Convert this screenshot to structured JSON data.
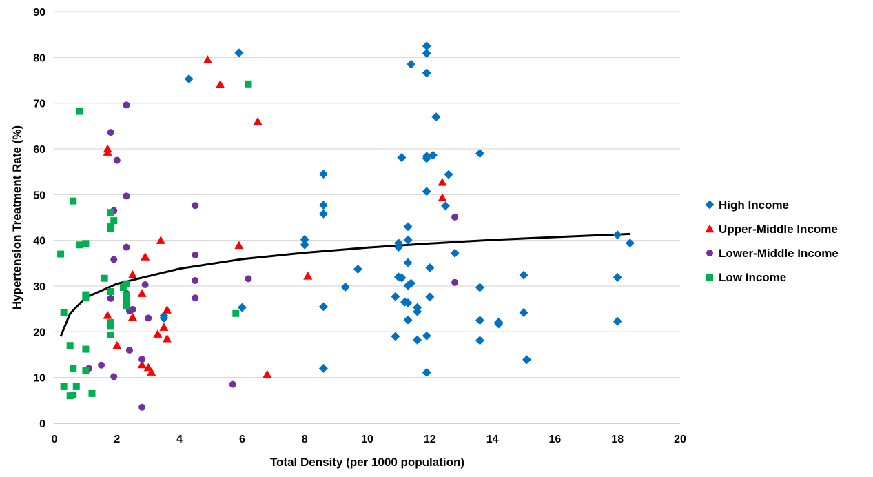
{
  "chart_data": {
    "type": "scatter",
    "title": "",
    "xlabel": "Total Density (per 1000 population)",
    "ylabel": "Hypertension Treatment Rate (%)",
    "xlim": [
      0,
      20
    ],
    "ylim": [
      0,
      90
    ],
    "xticks": [
      0,
      2,
      4,
      6,
      8,
      10,
      12,
      14,
      16,
      18,
      20
    ],
    "yticks": [
      0,
      10,
      20,
      30,
      40,
      50,
      60,
      70,
      80,
      90
    ],
    "grid": "horizontal",
    "legend_position": "right",
    "series": [
      {
        "name": "High Income",
        "marker": "diamond",
        "color": "#0070C0",
        "points": [
          [
            3.5,
            23
          ],
          [
            3.5,
            23.5
          ],
          [
            4.3,
            75.3
          ],
          [
            5.9,
            81
          ],
          [
            6.0,
            25.3
          ],
          [
            8.0,
            40.2
          ],
          [
            8.0,
            39
          ],
          [
            8.6,
            54.5
          ],
          [
            8.6,
            47.7
          ],
          [
            8.6,
            45.8
          ],
          [
            8.6,
            25.5
          ],
          [
            8.6,
            12
          ],
          [
            9.3,
            29.8
          ],
          [
            9.7,
            33.7
          ],
          [
            10.9,
            27.7
          ],
          [
            10.9,
            19
          ],
          [
            11.0,
            39.4
          ],
          [
            11.0,
            38.5
          ],
          [
            11.0,
            32
          ],
          [
            11.1,
            31.8
          ],
          [
            11.1,
            58.1
          ],
          [
            11.2,
            26.5
          ],
          [
            11.3,
            43
          ],
          [
            11.3,
            40.1
          ],
          [
            11.3,
            35.1
          ],
          [
            11.3,
            30.1
          ],
          [
            11.3,
            26.3
          ],
          [
            11.3,
            22.6
          ],
          [
            11.4,
            78.5
          ],
          [
            11.4,
            30.6
          ],
          [
            11.6,
            25.3
          ],
          [
            11.6,
            24.4
          ],
          [
            11.6,
            18.2
          ],
          [
            11.9,
            82.5
          ],
          [
            11.9,
            80.9
          ],
          [
            11.9,
            76.6
          ],
          [
            11.9,
            58.4
          ],
          [
            11.9,
            57.9
          ],
          [
            11.9,
            50.7
          ],
          [
            11.9,
            19.1
          ],
          [
            11.9,
            11.1
          ],
          [
            12.0,
            34
          ],
          [
            12.0,
            27.6
          ],
          [
            12.1,
            58.6
          ],
          [
            12.2,
            67
          ],
          [
            12.5,
            47.5
          ],
          [
            12.6,
            54.4
          ],
          [
            12.8,
            37.2
          ],
          [
            13.6,
            59
          ],
          [
            13.6,
            29.7
          ],
          [
            13.6,
            22.5
          ],
          [
            13.6,
            18.1
          ],
          [
            14.2,
            22.1
          ],
          [
            14.2,
            21.7
          ],
          [
            15.0,
            32.4
          ],
          [
            15.0,
            24.2
          ],
          [
            15.1,
            13.9
          ],
          [
            18.0,
            41.2
          ],
          [
            18.0,
            31.9
          ],
          [
            18.0,
            22.3
          ],
          [
            18.4,
            39.4
          ]
        ]
      },
      {
        "name": "Upper-Middle Income",
        "marker": "triangle",
        "color": "#FF0000",
        "points": [
          [
            1.7,
            60
          ],
          [
            1.7,
            59.3
          ],
          [
            1.7,
            23.6
          ],
          [
            2.0,
            17
          ],
          [
            2.5,
            32.5
          ],
          [
            2.5,
            23.2
          ],
          [
            2.8,
            28.4
          ],
          [
            2.8,
            12.8
          ],
          [
            2.9,
            36.4
          ],
          [
            3.0,
            12.2
          ],
          [
            3.1,
            11.2
          ],
          [
            3.3,
            19.5
          ],
          [
            3.4,
            40
          ],
          [
            3.5,
            21
          ],
          [
            3.6,
            24.8
          ],
          [
            3.6,
            18.5
          ],
          [
            4.9,
            79.5
          ],
          [
            5.3,
            74.1
          ],
          [
            5.9,
            38.9
          ],
          [
            6.5,
            66
          ],
          [
            6.8,
            10.7
          ],
          [
            8.1,
            32.2
          ],
          [
            12.4,
            52.7
          ],
          [
            12.4,
            49.3
          ]
        ]
      },
      {
        "name": "Lower-Middle Income",
        "marker": "circle",
        "color": "#7030A0",
        "points": [
          [
            1.1,
            12
          ],
          [
            1.5,
            12.7
          ],
          [
            1.8,
            63.6
          ],
          [
            1.8,
            27.3
          ],
          [
            1.9,
            46.5
          ],
          [
            1.9,
            35.8
          ],
          [
            1.9,
            10.2
          ],
          [
            2.0,
            57.5
          ],
          [
            2.3,
            69.6
          ],
          [
            2.3,
            49.7
          ],
          [
            2.3,
            38.5
          ],
          [
            2.3,
            28.4
          ],
          [
            2.4,
            24.6
          ],
          [
            2.4,
            16
          ],
          [
            2.5,
            24.9
          ],
          [
            2.8,
            14
          ],
          [
            2.8,
            3.5
          ],
          [
            2.9,
            30.3
          ],
          [
            3.0,
            23
          ],
          [
            4.5,
            47.6
          ],
          [
            4.5,
            36.8
          ],
          [
            4.5,
            31.2
          ],
          [
            4.5,
            27.4
          ],
          [
            5.7,
            8.5
          ],
          [
            6.2,
            31.6
          ],
          [
            12.8,
            45.1
          ],
          [
            12.8,
            30.8
          ]
        ]
      },
      {
        "name": "Low Income",
        "marker": "square",
        "color": "#00B050",
        "points": [
          [
            0.2,
            37
          ],
          [
            0.3,
            24.2
          ],
          [
            0.3,
            8
          ],
          [
            0.5,
            17
          ],
          [
            0.5,
            6
          ],
          [
            0.6,
            48.6
          ],
          [
            0.6,
            12
          ],
          [
            0.6,
            6.2
          ],
          [
            0.7,
            8
          ],
          [
            0.8,
            68.2
          ],
          [
            0.8,
            39
          ],
          [
            1.0,
            39.3
          ],
          [
            1.0,
            28.1
          ],
          [
            1.0,
            27.4
          ],
          [
            1.0,
            16.2
          ],
          [
            1.0,
            11.5
          ],
          [
            1.2,
            6.5
          ],
          [
            1.6,
            31.7
          ],
          [
            1.8,
            46.1
          ],
          [
            1.8,
            43
          ],
          [
            1.8,
            42.6
          ],
          [
            1.8,
            28.8
          ],
          [
            1.8,
            22
          ],
          [
            1.8,
            21.2
          ],
          [
            1.8,
            19.3
          ],
          [
            1.9,
            44.3
          ],
          [
            2.2,
            29.7
          ],
          [
            2.3,
            30.5
          ],
          [
            2.3,
            28
          ],
          [
            2.3,
            27.1
          ],
          [
            2.3,
            26.4
          ],
          [
            2.3,
            25.6
          ],
          [
            5.8,
            24
          ],
          [
            6.2,
            74.2
          ]
        ]
      }
    ],
    "trendline": {
      "type": "logarithmic",
      "color": "#000000",
      "points": [
        [
          0.2,
          19
        ],
        [
          0.5,
          24
        ],
        [
          1,
          27.5
        ],
        [
          2,
          30.5
        ],
        [
          4,
          33.8
        ],
        [
          6,
          35.9
        ],
        [
          8,
          37.3
        ],
        [
          10,
          38.4
        ],
        [
          12,
          39.3
        ],
        [
          14,
          40.1
        ],
        [
          16,
          40.7
        ],
        [
          18.4,
          41.4
        ]
      ]
    }
  }
}
